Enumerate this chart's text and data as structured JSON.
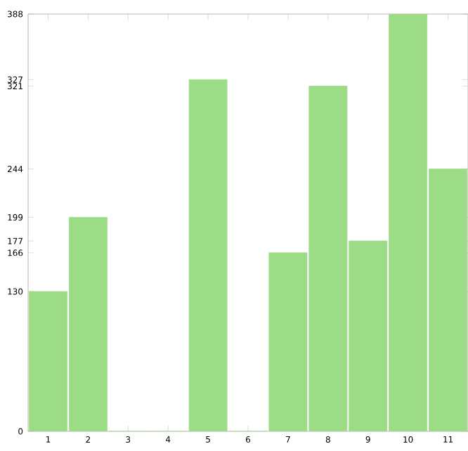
{
  "chart_data": {
    "type": "bar",
    "categories": [
      "1",
      "2",
      "3",
      "4",
      "5",
      "6",
      "7",
      "8",
      "9",
      "10",
      "11"
    ],
    "values": [
      130,
      199,
      0,
      0,
      327,
      0,
      166,
      321,
      177,
      388,
      244
    ],
    "color": "#9ddc87",
    "ylim": [
      0,
      388
    ],
    "yticks": [
      0,
      130,
      166,
      177,
      199,
      244,
      321,
      327,
      388
    ],
    "grid": false
  }
}
